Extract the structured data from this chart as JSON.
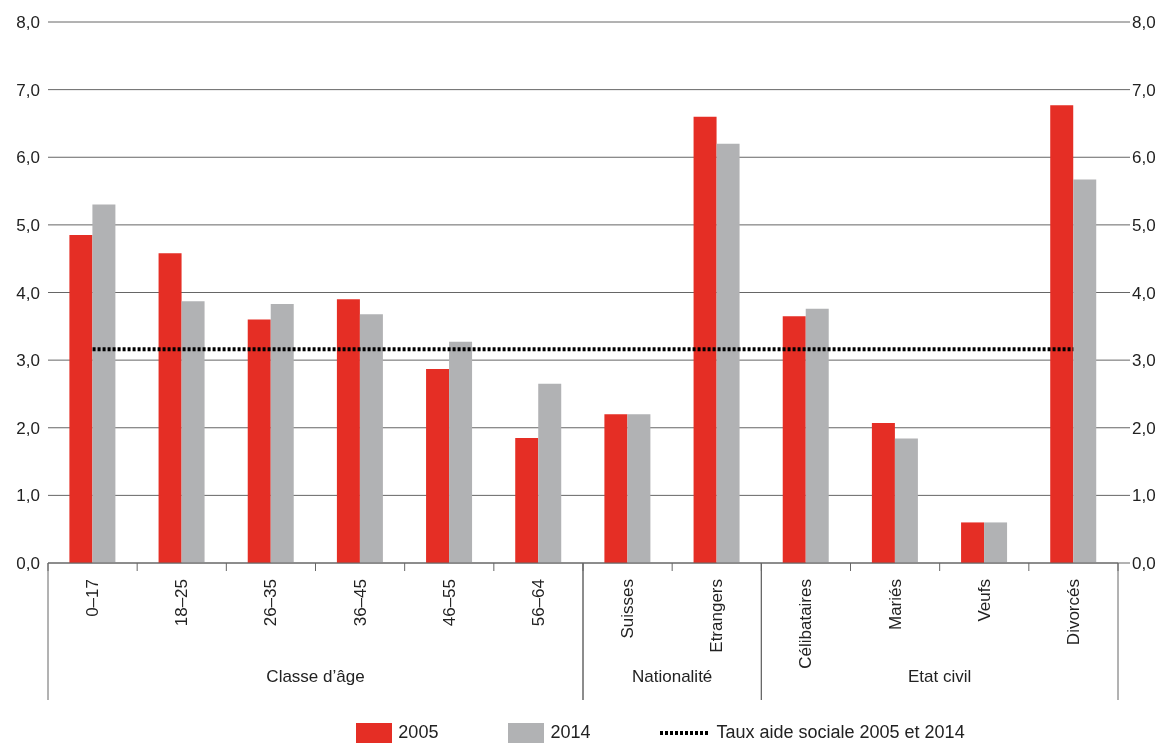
{
  "chart_data": {
    "type": "bar",
    "categories": [
      "0–17",
      "18–25",
      "26–35",
      "36–45",
      "46–55",
      "56–64",
      "Suisses",
      "Etrangers",
      "Célibataires",
      "Mariés",
      "Veufs",
      "Divorcés"
    ],
    "series": [
      {
        "name": "2005",
        "color": "#e52e25",
        "values": [
          4.85,
          4.58,
          3.6,
          3.9,
          2.87,
          1.85,
          2.2,
          6.6,
          3.65,
          2.07,
          0.6,
          6.77
        ]
      },
      {
        "name": "2014",
        "color": "#b1b2b4",
        "values": [
          5.3,
          3.87,
          3.83,
          3.68,
          3.27,
          2.65,
          2.2,
          6.2,
          3.76,
          1.84,
          0.6,
          5.67
        ]
      }
    ],
    "ylim": [
      0,
      8
    ],
    "yticks": [
      {
        "value": 0,
        "label": "0,0"
      },
      {
        "value": 1,
        "label": "1,0"
      },
      {
        "value": 2,
        "label": "2,0"
      },
      {
        "value": 3,
        "label": "3,0"
      },
      {
        "value": 4,
        "label": "4,0"
      },
      {
        "value": 5,
        "label": "5,0"
      },
      {
        "value": 6,
        "label": "6,0"
      },
      {
        "value": 7,
        "label": "7,0"
      },
      {
        "value": 8,
        "label": "8,0"
      }
    ],
    "y2lim": [
      0,
      8
    ],
    "y2ticks": [
      {
        "value": 0,
        "label": "0,0"
      },
      {
        "value": 1,
        "label": "1,0"
      },
      {
        "value": 2,
        "label": "2,0"
      },
      {
        "value": 3,
        "label": "3,0"
      },
      {
        "value": 4,
        "label": "4,0"
      },
      {
        "value": 5,
        "label": "5,0"
      },
      {
        "value": 6,
        "label": "6,0"
      },
      {
        "value": 7,
        "label": "7,0"
      },
      {
        "value": 8,
        "label": "8,0"
      }
    ],
    "ref_lines": [
      {
        "axis": "y",
        "value": 3.16,
        "label": "Taux aide sociale 2005 et 2014",
        "color": "#000000",
        "line_style": "dotted"
      }
    ],
    "annotations": [
      "Classe d’âge",
      "Nationalité",
      "Etat civil"
    ],
    "grid": "y",
    "legend": "bottom"
  }
}
